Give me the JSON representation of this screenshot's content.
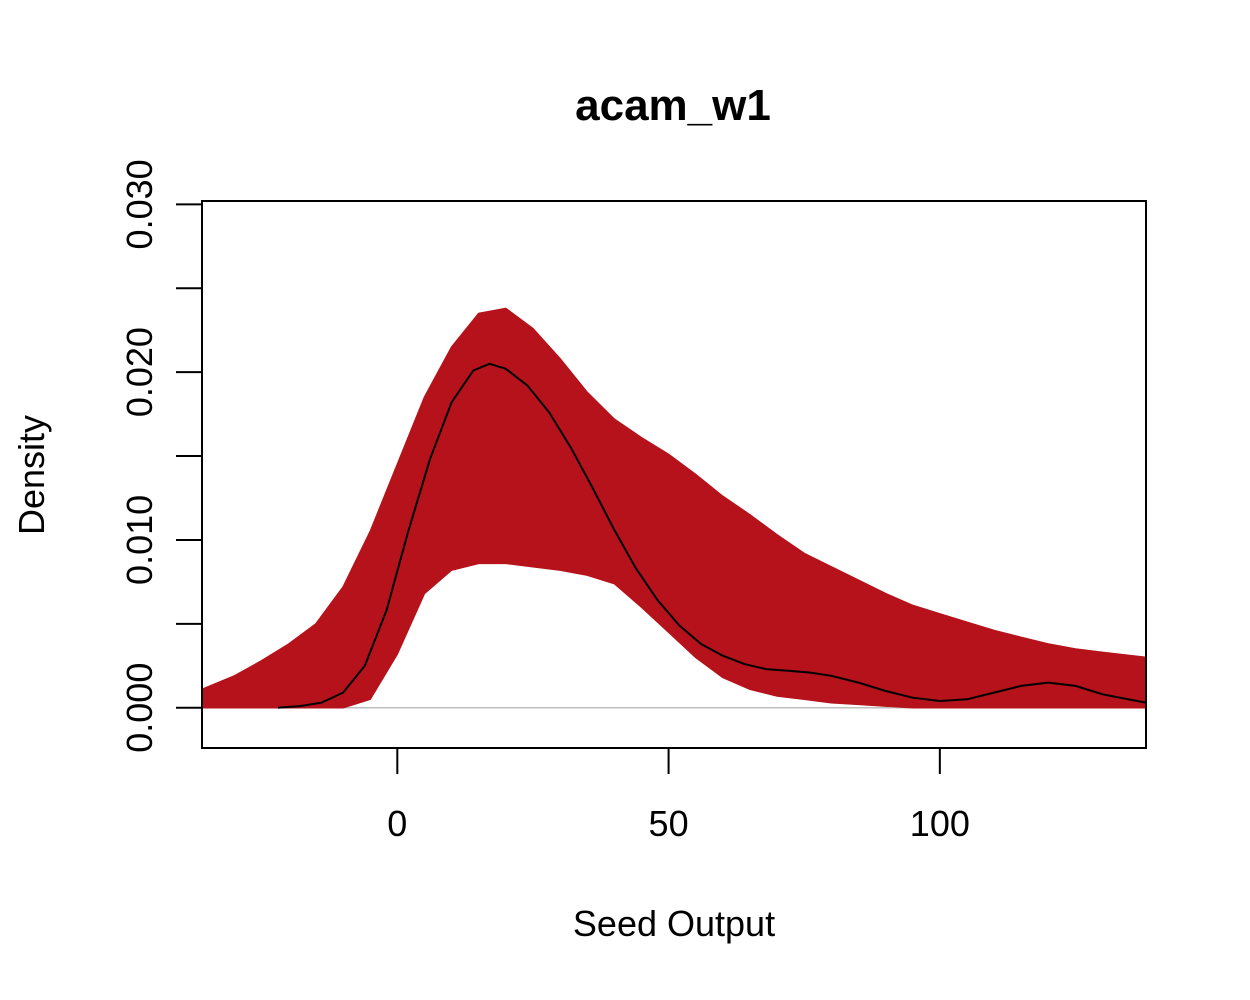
{
  "chart_data": {
    "type": "line",
    "title": "acam_w1",
    "xlabel": "Seed Output",
    "ylabel": "Density",
    "xlim": [
      -36,
      138
    ],
    "ylim": [
      -0.0024,
      0.0302
    ],
    "x_ticks": [
      0,
      50,
      100
    ],
    "y_ticks": [
      0.0,
      0.005,
      0.01,
      0.015,
      0.02,
      0.025,
      0.03
    ],
    "y_tick_labels": [
      {
        "value": 0.0,
        "label": "0.000"
      },
      {
        "value": 0.01,
        "label": "0.010"
      },
      {
        "value": 0.02,
        "label": "0.020"
      },
      {
        "value": 0.03,
        "label": "0.030"
      }
    ],
    "grid": false,
    "colors": {
      "simulated": "#B5121B",
      "observed": "#000000",
      "baseline": "#BEBEBE"
    },
    "simulated_band": {
      "x": [
        -36,
        -30,
        -25,
        -20,
        -15,
        -10,
        -5,
        0,
        5,
        10,
        15,
        20,
        25,
        30,
        35,
        40,
        45,
        50,
        55,
        60,
        65,
        70,
        75,
        80,
        85,
        90,
        95,
        100,
        105,
        110,
        115,
        120,
        125,
        130,
        138
      ],
      "upper": [
        0.0011,
        0.0019,
        0.0028,
        0.0038,
        0.005,
        0.0072,
        0.0105,
        0.0145,
        0.0185,
        0.0215,
        0.0235,
        0.0238,
        0.0226,
        0.0208,
        0.0188,
        0.0172,
        0.0161,
        0.0151,
        0.0139,
        0.0126,
        0.0115,
        0.0103,
        0.0092,
        0.0084,
        0.0076,
        0.0068,
        0.0061,
        0.0056,
        0.0051,
        0.0046,
        0.0042,
        0.0038,
        0.0035,
        0.0033,
        0.003
      ],
      "lower": [
        0.0,
        0.0,
        0.0,
        0.0,
        0.0,
        0.0,
        0.0005,
        0.0032,
        0.0068,
        0.0082,
        0.0086,
        0.0086,
        0.0084,
        0.0082,
        0.0079,
        0.0074,
        0.006,
        0.0045,
        0.003,
        0.0018,
        0.0011,
        0.0007,
        0.0005,
        0.0003,
        0.0002,
        0.0001,
        0.0,
        0.0,
        0.0,
        0.0,
        0.0,
        0.0,
        0.0,
        0.0,
        0.0
      ]
    },
    "series": [
      {
        "x": [
          -22,
          -18,
          -14,
          -10,
          -6,
          -2,
          2,
          6,
          10,
          14,
          17,
          20,
          24,
          28,
          32,
          36,
          40,
          44,
          48,
          52,
          56,
          60,
          64,
          68,
          72,
          76,
          80,
          85,
          90,
          95,
          100,
          105,
          110,
          115,
          120,
          125,
          130,
          138
        ],
        "y": [
          0.0,
          0.0001,
          0.0003,
          0.0009,
          0.0025,
          0.0058,
          0.0105,
          0.0148,
          0.0182,
          0.0201,
          0.0205,
          0.0202,
          0.0192,
          0.0176,
          0.0155,
          0.0131,
          0.0106,
          0.0083,
          0.0064,
          0.0049,
          0.0038,
          0.0031,
          0.0026,
          0.0023,
          0.0022,
          0.0021,
          0.0019,
          0.0015,
          0.001,
          0.0006,
          0.0004,
          0.0005,
          0.0009,
          0.0013,
          0.0015,
          0.0013,
          0.0008,
          0.0003
        ]
      }
    ]
  }
}
